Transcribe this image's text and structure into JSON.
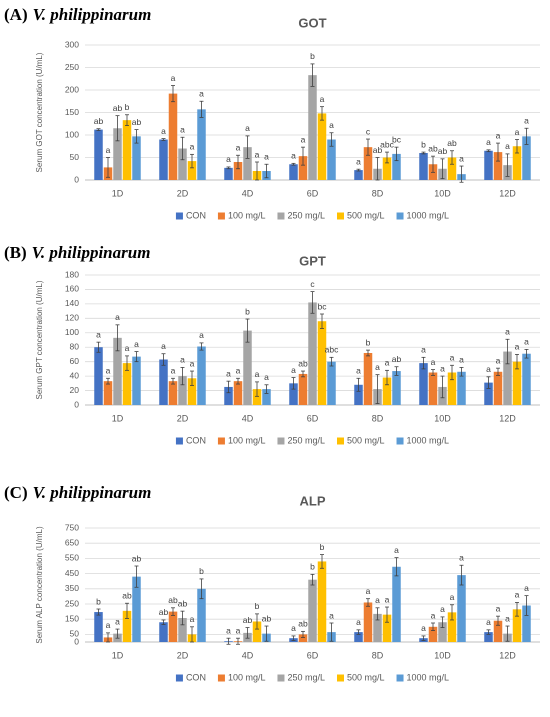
{
  "chart_data": [
    {
      "type": "bar",
      "panel_label": "(A)",
      "organism": "V. philippinarum",
      "title": "GOT",
      "ylabel": "Serum GOT concentration (U/mL)",
      "categories": [
        "1D",
        "2D",
        "4D",
        "6D",
        "8D",
        "10D",
        "12D"
      ],
      "ylim": [
        0,
        300
      ],
      "yticks": [
        0,
        50,
        100,
        150,
        200,
        250,
        300
      ],
      "grid": true,
      "legend": "bottom",
      "series": [
        {
          "name": "CON",
          "color": "#4472c4",
          "values": [
            112,
            90,
            27,
            35,
            22,
            60,
            65
          ],
          "errors": [
            2,
            2,
            2,
            2,
            2,
            2,
            2
          ],
          "significance": [
            "ab",
            "a",
            "a",
            "a",
            "a",
            "b",
            "a"
          ]
        },
        {
          "name": "100 mg/L",
          "color": "#ed7d31",
          "values": [
            28,
            192,
            40,
            53,
            73,
            35,
            62
          ],
          "errors": [
            22,
            18,
            15,
            20,
            18,
            18,
            20
          ],
          "significance": [
            "a",
            "a",
            "a",
            "a",
            "c",
            "ab",
            "a"
          ]
        },
        {
          "name": "250 mg/L",
          "color": "#a5a5a5",
          "values": [
            115,
            70,
            73,
            233,
            25,
            25,
            33
          ],
          "errors": [
            28,
            25,
            25,
            25,
            25,
            22,
            25
          ],
          "significance": [
            "ab",
            "a",
            "a",
            "b",
            "ab",
            "ab",
            "a"
          ]
        },
        {
          "name": "500 mg/L",
          "color": "#ffc000",
          "values": [
            133,
            42,
            20,
            148,
            50,
            50,
            75
          ],
          "errors": [
            12,
            15,
            20,
            15,
            12,
            15,
            15
          ],
          "significance": [
            "b",
            "a",
            "a",
            "a",
            "abc",
            "ab",
            "a"
          ]
        },
        {
          "name": "1000 mg/L",
          "color": "#5b9bd5",
          "values": [
            97,
            157,
            20,
            90,
            58,
            13,
            97
          ],
          "errors": [
            15,
            18,
            15,
            15,
            15,
            18,
            18
          ],
          "significance": [
            "ab",
            "a",
            "a",
            "a",
            "bc",
            "a",
            "a"
          ]
        }
      ]
    },
    {
      "type": "bar",
      "panel_label": "(B)",
      "organism": "V. philippinarum",
      "title": "GPT",
      "ylabel": "Serum GPT concentration (U/mL)",
      "categories": [
        "1D",
        "2D",
        "4D",
        "6D",
        "8D",
        "10D",
        "12D"
      ],
      "ylim": [
        0,
        180
      ],
      "yticks": [
        0,
        20,
        40,
        60,
        80,
        100,
        120,
        140,
        160,
        180
      ],
      "grid": true,
      "legend": "bottom",
      "series": [
        {
          "name": "CON",
          "color": "#4472c4",
          "values": [
            80,
            63,
            25,
            30,
            28,
            58,
            31
          ],
          "errors": [
            7,
            8,
            8,
            8,
            9,
            8,
            8
          ],
          "significance": [
            "a",
            "a",
            "a",
            "a",
            "a",
            "a",
            "a"
          ]
        },
        {
          "name": "100 mg/L",
          "color": "#ed7d31",
          "values": [
            33,
            33,
            33,
            43,
            72,
            45,
            46
          ],
          "errors": [
            4,
            4,
            4,
            4,
            4,
            4,
            5
          ],
          "significance": [
            "a",
            "a",
            "a",
            "ab",
            "b",
            "a",
            "a"
          ]
        },
        {
          "name": "250 mg/L",
          "color": "#a5a5a5",
          "values": [
            93,
            40,
            103,
            142,
            22,
            25,
            74
          ],
          "errors": [
            18,
            12,
            16,
            15,
            20,
            15,
            17
          ],
          "significance": [
            "a",
            "a",
            "b",
            "c",
            "a",
            "a",
            "a"
          ]
        },
        {
          "name": "500 mg/L",
          "color": "#ffc000",
          "values": [
            58,
            37,
            22,
            116,
            38,
            45,
            60
          ],
          "errors": [
            10,
            10,
            10,
            10,
            10,
            10,
            10
          ],
          "significance": [
            "a",
            "a",
            "a",
            "bc",
            "a",
            "a",
            "a"
          ]
        },
        {
          "name": "1000 mg/L",
          "color": "#5b9bd5",
          "values": [
            67,
            81,
            22,
            60,
            47,
            46,
            71
          ],
          "errors": [
            7,
            5,
            6,
            6,
            6,
            6,
            6
          ],
          "significance": [
            "a",
            "a",
            "a",
            "abc",
            "ab",
            "a",
            "a"
          ]
        }
      ]
    },
    {
      "type": "bar",
      "panel_label": "(C)",
      "organism": "V. philippinarum",
      "title": "ALP",
      "ylabel": "Serum ALP concentration (U/mL)",
      "categories": [
        "1D",
        "2D",
        "4D",
        "6D",
        "8D",
        "10D",
        "12D"
      ],
      "ylim": [
        0,
        750
      ],
      "yticks": [
        0,
        50,
        150,
        250,
        350,
        450,
        550,
        650,
        750
      ],
      "grid": true,
      "legend": "bottom",
      "series": [
        {
          "name": "CON",
          "color": "#4472c4",
          "values": [
            197,
            130,
            5,
            25,
            65,
            25,
            65
          ],
          "errors": [
            20,
            15,
            20,
            15,
            15,
            15,
            15
          ],
          "significance": [
            "b",
            "ab",
            "a",
            "a",
            "a",
            "a",
            "a"
          ]
        },
        {
          "name": "100 mg/L",
          "color": "#ed7d31",
          "values": [
            30,
            200,
            5,
            50,
            260,
            100,
            140
          ],
          "errors": [
            30,
            25,
            20,
            20,
            25,
            25,
            30
          ],
          "significance": [
            "a",
            "ab",
            "a",
            "ab",
            "a",
            "a",
            "a"
          ]
        },
        {
          "name": "250 mg/L",
          "color": "#a5a5a5",
          "values": [
            55,
            158,
            60,
            410,
            185,
            130,
            55
          ],
          "errors": [
            30,
            45,
            35,
            35,
            40,
            35,
            50
          ],
          "significance": [
            "a",
            "ab",
            "ab",
            "b",
            "a",
            "a",
            "a"
          ]
        },
        {
          "name": "500 mg/L",
          "color": "#ffc000",
          "values": [
            205,
            50,
            135,
            530,
            180,
            195,
            215
          ],
          "errors": [
            50,
            50,
            50,
            45,
            50,
            50,
            45
          ],
          "significance": [
            "ab",
            "a",
            "b",
            "b",
            "a",
            "a",
            "a"
          ]
        },
        {
          "name": "1000 mg/L",
          "color": "#5b9bd5",
          "values": [
            430,
            350,
            55,
            65,
            495,
            440,
            240
          ],
          "errors": [
            70,
            65,
            50,
            60,
            60,
            65,
            65
          ],
          "significance": [
            "ab",
            "b",
            "ab",
            "a",
            "a",
            "a",
            "a"
          ]
        }
      ]
    }
  ]
}
